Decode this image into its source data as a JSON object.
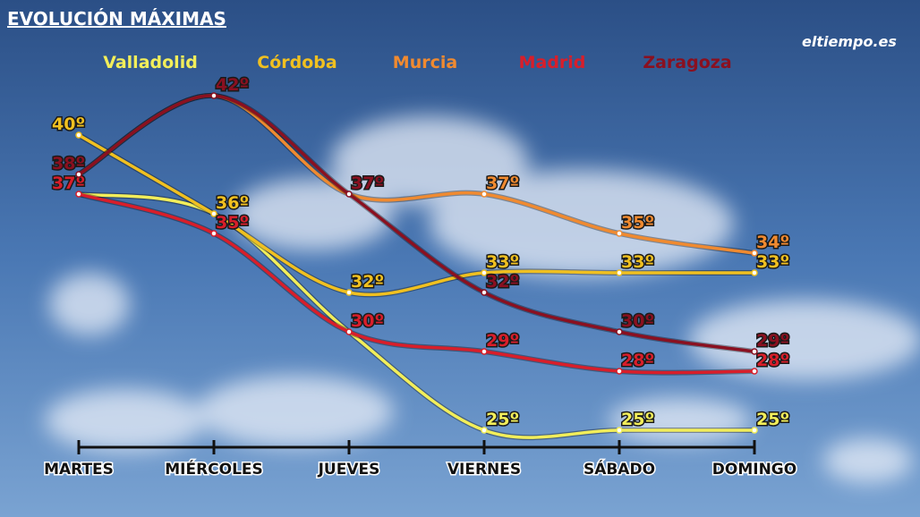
{
  "chart_data": {
    "type": "line",
    "title": "EVOLUCIÓN MÁXIMAS",
    "logo": "eltiempo.es",
    "categories": [
      "MARTES",
      "MIÉRCOLES",
      "JUEVES",
      "VIERNES",
      "SÁBADO",
      "DOMINGO"
    ],
    "ylim": [
      22,
      44
    ],
    "series": [
      {
        "name": "Valladolid",
        "color": "#f2ee5a",
        "values": [
          37,
          36,
          30,
          25,
          25,
          25
        ],
        "value_labels": [
          null,
          null,
          null,
          "25º",
          "25º",
          "25º"
        ]
      },
      {
        "name": "Córdoba",
        "color": "#f0c020",
        "values": [
          40,
          36,
          32,
          33,
          33,
          33
        ],
        "value_labels": [
          "40º",
          "36º",
          "32º",
          "33º",
          "33º",
          "33º"
        ]
      },
      {
        "name": "Murcia",
        "color": "#f08a30",
        "values": [
          38,
          42,
          37,
          37,
          35,
          34
        ],
        "value_labels": [
          null,
          null,
          null,
          "37º",
          "35º",
          "34º"
        ]
      },
      {
        "name": "Madrid",
        "color": "#d81e2a",
        "values": [
          37,
          35,
          30,
          29,
          28,
          28
        ],
        "value_labels": [
          "37º",
          "35º",
          "30º",
          "29º",
          "28º",
          "28º"
        ]
      },
      {
        "name": "Zaragoza",
        "color": "#8a1020",
        "values": [
          38,
          42,
          37,
          32,
          30,
          29
        ],
        "value_labels": [
          "38º",
          "42º",
          "37º",
          "32º",
          "30º",
          "29º"
        ]
      }
    ]
  }
}
